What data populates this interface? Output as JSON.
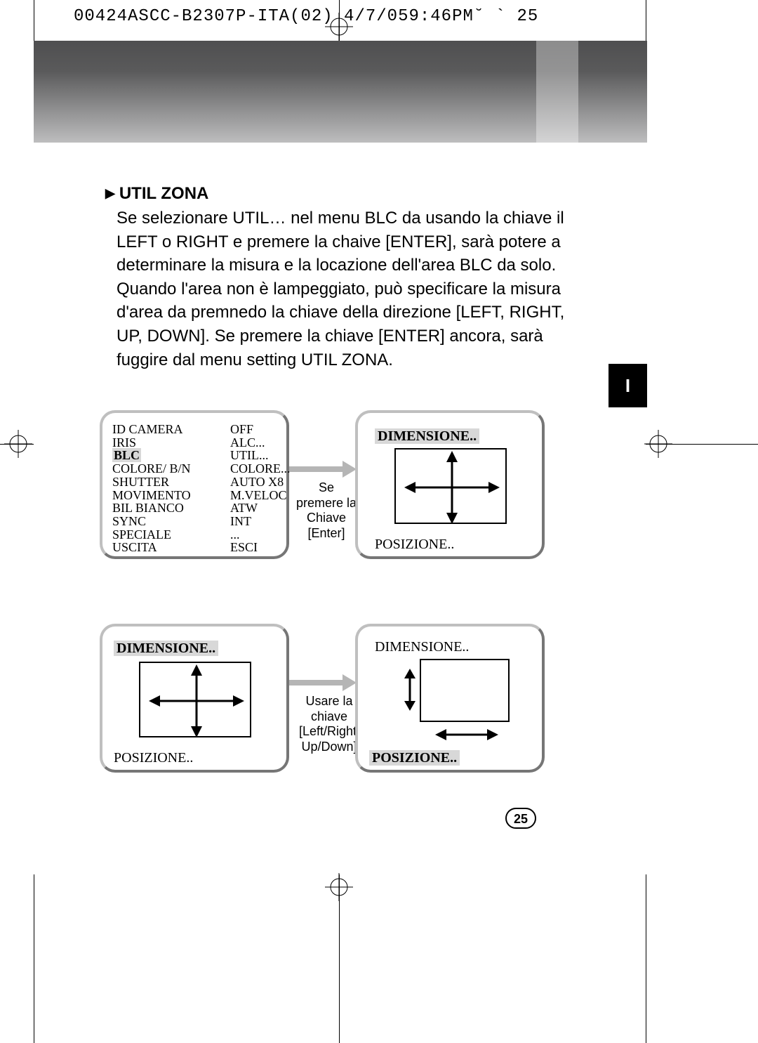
{
  "header": "00424ASCC-B2307P-ITA(02) 4/7/059:46PM˘  `  25",
  "side_tab": "I",
  "section": {
    "marker": "▶",
    "title": "UTIL ZONA",
    "body": "Se selezionare UTIL… nel menu BLC da usando la chiave il LEFT o RIGHT e premere la chaive [ENTER], sarà potere a determinare la misura e la locazione dell'area BLC da solo. Quando l'area non è lampeggiato, può specificare la misura d'area da premnedo la chiave della direzione [LEFT, RIGHT, UP, DOWN]. Se premere la chiave [ENTER] ancora, sarà fuggire dal menu setting UTIL ZONA."
  },
  "menu": {
    "rows": [
      {
        "c1": "ID CAMERA",
        "c2": "OFF"
      },
      {
        "c1": "IRIS",
        "c2": "ALC..."
      },
      {
        "c1": "BLC",
        "c2": "UTIL...",
        "hl": true
      },
      {
        "c1": "COLORE/ B/N",
        "c2": "COLORE..."
      },
      {
        "c1": "SHUTTER",
        "c2": "AUTO X8"
      },
      {
        "c1": "MOVIMENTO",
        "c2": "M.VELOC"
      },
      {
        "c1": "BIL BIANCO",
        "c2": "ATW"
      },
      {
        "c1": "SYNC",
        "c2": "INT"
      },
      {
        "c1": "SPECIALE",
        "c2": "..."
      },
      {
        "c1": "USCITA",
        "c2": "ESCI"
      }
    ]
  },
  "panel2": {
    "dim": "DIMENSIONE..",
    "pos": "POSIZIONE.."
  },
  "panel3": {
    "dim": "DIMENSIONE..",
    "pos": "POSIZIONE.."
  },
  "panel4": {
    "dim": "DIMENSIONE..",
    "pos": "POSIZIONE.."
  },
  "connector1": "Se premere la Chiave [Enter]",
  "connector2": "Usare la chiave [Left/Right/ Up/Down]",
  "page_number": "25",
  "colors": {
    "highlight_bg": "#d8d8d8",
    "panel_border_light": "#bfbfbf",
    "panel_border_dark": "#767676",
    "banner_top": "#4f4f50",
    "banner_bot": "#bdbdbe",
    "arrow_gray": "#b5b5b5"
  }
}
